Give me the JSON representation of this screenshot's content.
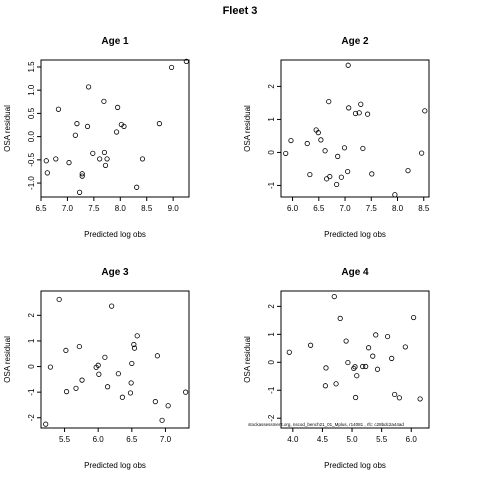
{
  "figure_title": "Fleet 3",
  "watermark": "stockassessment.org, nscod_bench21_01_Mplus, r14081 , rfc: c28bdc2a44ad",
  "colors": {
    "points": "#000000",
    "axes": "#000000",
    "background": "#ffffff"
  },
  "chart_data": [
    {
      "type": "scatter",
      "title": "Age 1",
      "xlabel": "Predicted log obs",
      "ylabel": "OSA residual",
      "xlim": [
        6.5,
        9.3
      ],
      "ylim": [
        -1.3,
        1.65
      ],
      "xticks": [
        6.5,
        7.0,
        7.5,
        8.0,
        8.5,
        9.0
      ],
      "xtick_labels": [
        "6.5",
        "7.0",
        "7.5",
        "8.0",
        "8.5",
        "9.0"
      ],
      "yticks": [
        -1.0,
        -0.5,
        0.0,
        0.5,
        1.0,
        1.5
      ],
      "ytick_labels": [
        "-1.0",
        "-0.5",
        "0.0",
        "0.5",
        "1.0",
        "1.5"
      ],
      "x": [
        6.6,
        6.62,
        6.78,
        6.83,
        7.03,
        7.15,
        7.18,
        7.23,
        7.28,
        7.28,
        7.38,
        7.4,
        7.48,
        7.61,
        7.69,
        7.7,
        7.72,
        7.75,
        7.93,
        7.95,
        8.02,
        8.07,
        8.31,
        8.42,
        8.74,
        8.97,
        9.25
      ],
      "y": [
        -0.52,
        -0.78,
        -0.48,
        0.59,
        -0.56,
        0.03,
        0.28,
        -1.2,
        -0.8,
        -0.85,
        0.22,
        1.07,
        -0.36,
        -0.48,
        0.76,
        -0.34,
        -0.62,
        -0.48,
        0.1,
        0.63,
        0.26,
        0.22,
        -1.09,
        -0.48,
        0.28,
        1.49,
        1.62
      ]
    },
    {
      "type": "scatter",
      "title": "Age 2",
      "xlabel": "Predicted log obs",
      "ylabel": "OSA residual",
      "xlim": [
        5.78,
        8.6
      ],
      "ylim": [
        -1.35,
        2.8
      ],
      "xticks": [
        6.0,
        6.5,
        7.0,
        7.5,
        8.0,
        8.5
      ],
      "xtick_labels": [
        "6.0",
        "6.5",
        "7.0",
        "7.5",
        "8.0",
        "8.5"
      ],
      "yticks": [
        -1,
        0,
        1,
        2
      ],
      "ytick_labels": [
        "-1",
        "0",
        "1",
        "2"
      ],
      "x": [
        5.87,
        5.97,
        6.28,
        6.33,
        6.45,
        6.49,
        6.54,
        6.62,
        6.65,
        6.69,
        6.71,
        6.84,
        6.86,
        6.93,
        6.99,
        7.05,
        7.06,
        7.07,
        7.2,
        7.27,
        7.3,
        7.34,
        7.43,
        7.51,
        7.95,
        8.2,
        8.46,
        8.52
      ],
      "y": [
        -0.03,
        0.36,
        0.27,
        -0.67,
        0.68,
        0.6,
        0.38,
        0.05,
        -0.8,
        1.54,
        -0.73,
        -0.97,
        -0.12,
        -0.75,
        0.14,
        -0.58,
        2.64,
        1.35,
        1.18,
        1.2,
        1.46,
        0.12,
        1.16,
        -0.65,
        -1.28,
        -0.55,
        -0.02,
        1.26
      ]
    },
    {
      "type": "scatter",
      "title": "Age 3",
      "xlabel": "Predicted log obs",
      "ylabel": "OSA residual",
      "xlim": [
        5.15,
        7.35
      ],
      "ylim": [
        -2.4,
        2.95
      ],
      "xticks": [
        5.5,
        6.0,
        6.5,
        7.0
      ],
      "xtick_labels": [
        "5.5",
        "6.0",
        "6.5",
        "7.0"
      ],
      "yticks": [
        -2,
        -1,
        0,
        1,
        2
      ],
      "ytick_labels": [
        "-2",
        "-1",
        "0",
        "1",
        "2"
      ],
      "x": [
        5.22,
        5.29,
        5.42,
        5.52,
        5.53,
        5.67,
        5.72,
        5.76,
        5.97,
        6.0,
        6.01,
        6.1,
        6.14,
        6.2,
        6.3,
        6.36,
        6.48,
        6.49,
        6.5,
        6.53,
        6.54,
        6.58,
        6.85,
        6.88,
        6.95,
        7.04,
        7.3
      ],
      "y": [
        -2.25,
        -0.02,
        2.62,
        0.63,
        -0.98,
        -0.85,
        0.78,
        -0.53,
        -0.03,
        0.05,
        -0.3,
        0.36,
        -0.79,
        2.36,
        -0.28,
        -1.2,
        -1.03,
        -0.64,
        0.12,
        0.86,
        0.72,
        1.2,
        -1.37,
        0.42,
        -2.1,
        -1.53,
        -1.0
      ]
    },
    {
      "type": "scatter",
      "title": "Age 4",
      "xlabel": "Predicted log obs",
      "ylabel": "OSA residual",
      "xlim": [
        3.8,
        6.3
      ],
      "ylim": [
        -2.35,
        2.55
      ],
      "xticks": [
        4.0,
        4.5,
        5.0,
        5.5,
        6.0
      ],
      "xtick_labels": [
        "4.0",
        "4.5",
        "5.0",
        "5.5",
        "6.0"
      ],
      "yticks": [
        -2,
        -1,
        0,
        1,
        2
      ],
      "ytick_labels": [
        "-2",
        "-1",
        "0",
        "1",
        "2"
      ],
      "x": [
        3.94,
        4.3,
        4.55,
        4.56,
        4.7,
        4.73,
        4.8,
        4.9,
        4.93,
        5.03,
        5.05,
        5.06,
        5.08,
        5.18,
        5.23,
        5.28,
        5.35,
        5.4,
        5.43,
        5.6,
        5.67,
        5.72,
        5.8,
        5.9,
        6.04,
        6.15
      ],
      "y": [
        0.36,
        0.61,
        -0.84,
        -0.2,
        2.35,
        -0.77,
        1.57,
        0.76,
        -0.01,
        -0.22,
        -0.16,
        -1.26,
        -0.48,
        -0.15,
        -0.15,
        0.52,
        0.22,
        0.98,
        -0.25,
        0.92,
        0.14,
        -1.15,
        -1.27,
        0.55,
        1.6,
        -1.31
      ]
    }
  ]
}
